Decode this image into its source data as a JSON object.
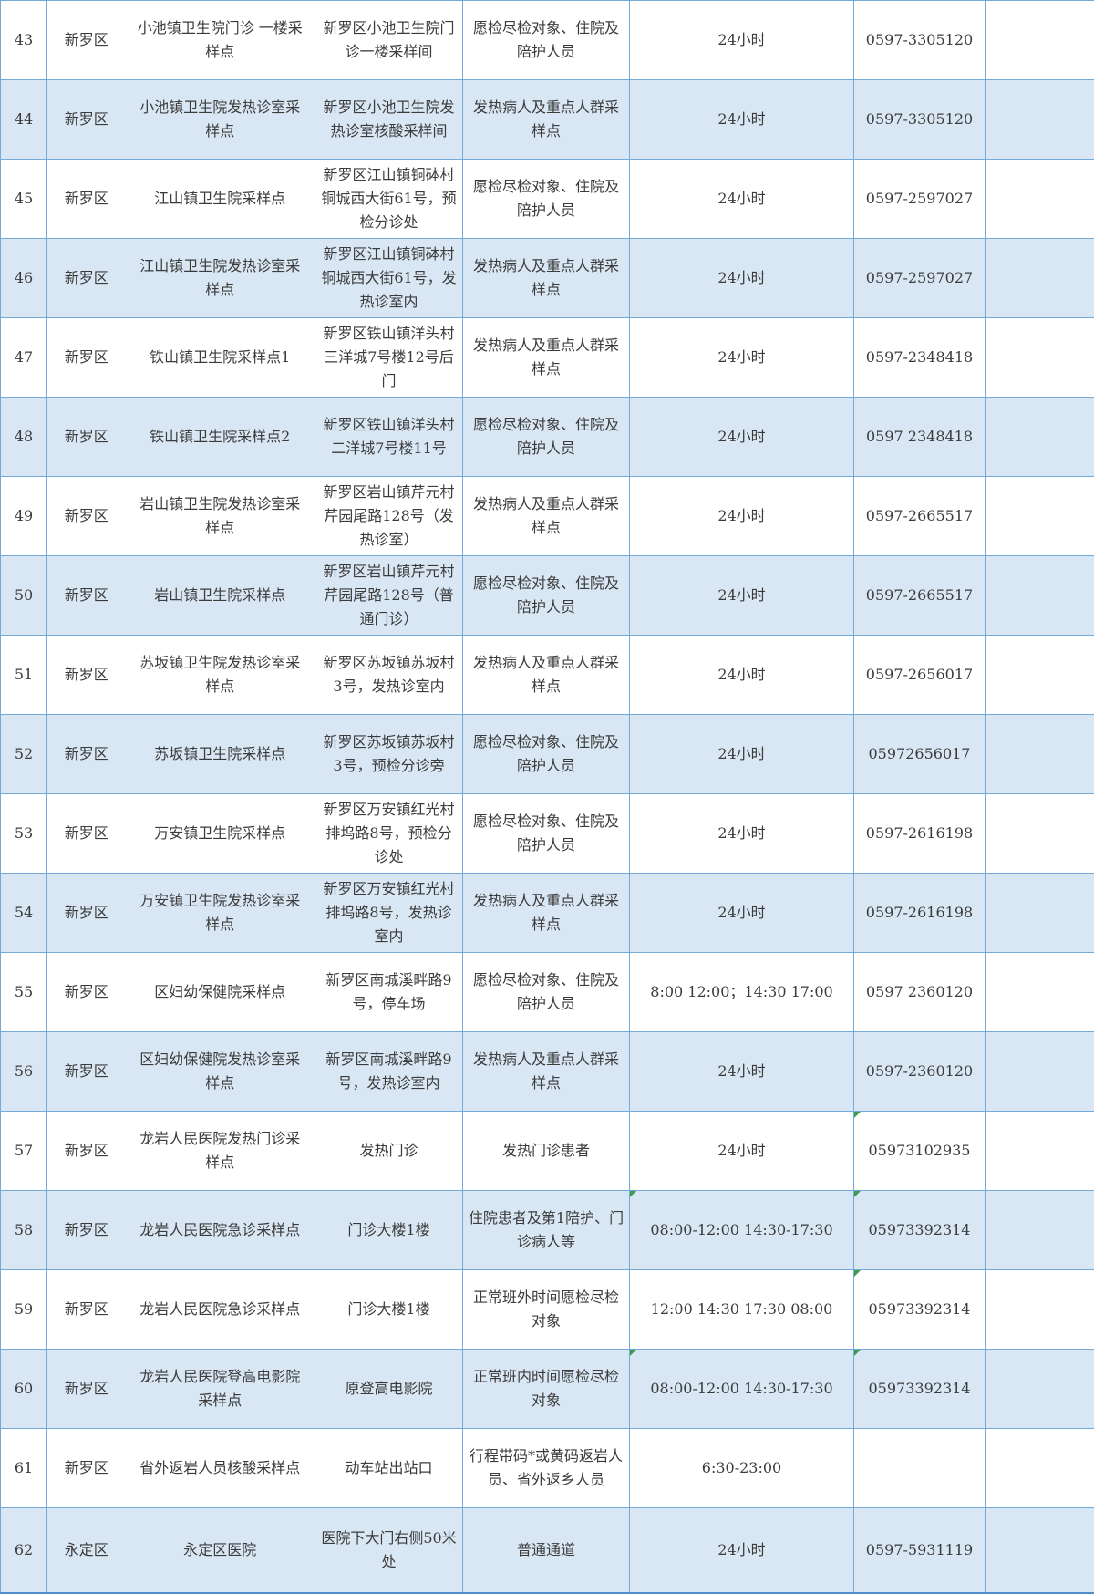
{
  "table": {
    "description": "nucleic-acid-sampling-sites-list",
    "colors": {
      "row_alt": "#d9e7f5",
      "border": "#74aad9",
      "border_bottom": "#4e8fc7",
      "text": "#3b3b3b",
      "flag_green": "#3e9b4f"
    },
    "rows": [
      {
        "no": "43",
        "district": "新罗区",
        "name": "小池镇卫生院门诊 一楼采样点",
        "address": "新罗区小池卫生院门诊一楼采样间",
        "population": "愿检尽检对象、住院及陪护人员",
        "hours": "24小时",
        "phone": "0597-3305120",
        "blank": "",
        "flags": []
      },
      {
        "no": "44",
        "district": "新罗区",
        "name": "小池镇卫生院发热诊室采样点",
        "address": "新罗区小池卫生院发热诊室核酸采样间",
        "population": "发热病人及重点人群采样点",
        "hours": "24小时",
        "phone": "0597-3305120",
        "blank": "",
        "flags": []
      },
      {
        "no": "45",
        "district": "新罗区",
        "name": "江山镇卫生院采样点",
        "address": "新罗区江山镇铜砵村铜城西大街61号，预检分诊处",
        "population": "愿检尽检对象、住院及陪护人员",
        "hours": "24小时",
        "phone": "0597-2597027",
        "blank": "",
        "flags": []
      },
      {
        "no": "46",
        "district": "新罗区",
        "name": "江山镇卫生院发热诊室采样点",
        "address": "新罗区江山镇铜砵村铜城西大街61号，发热诊室内",
        "population": "发热病人及重点人群采样点",
        "hours": "24小时",
        "phone": "0597-2597027",
        "blank": "",
        "flags": []
      },
      {
        "no": "47",
        "district": "新罗区",
        "name": "铁山镇卫生院采样点1",
        "address": "新罗区铁山镇洋头村三洋城7号楼12号后门",
        "population": "发热病人及重点人群采样点",
        "hours": "24小时",
        "phone": "0597-2348418",
        "blank": "",
        "flags": []
      },
      {
        "no": "48",
        "district": "新罗区",
        "name": "铁山镇卫生院采样点2",
        "address": "新罗区铁山镇洋头村二洋城7号楼11号",
        "population": "愿检尽检对象、住院及陪护人员",
        "hours": "24小时",
        "phone": "0597 2348418",
        "blank": "",
        "flags": []
      },
      {
        "no": "49",
        "district": "新罗区",
        "name": "岩山镇卫生院发热诊室采样点",
        "address": "新罗区岩山镇芹元村芹园尾路128号（发热诊室）",
        "population": "发热病人及重点人群采样点",
        "hours": "24小时",
        "phone": "0597-2665517",
        "blank": "",
        "flags": []
      },
      {
        "no": "50",
        "district": "新罗区",
        "name": "岩山镇卫生院采样点",
        "address": "新罗区岩山镇芹元村芹园尾路128号（普通门诊）",
        "population": "愿检尽检对象、住院及陪护人员",
        "hours": "24小时",
        "phone": "0597-2665517",
        "blank": "",
        "flags": []
      },
      {
        "no": "51",
        "district": "新罗区",
        "name": "苏坂镇卫生院发热诊室采样点",
        "address": "新罗区苏坂镇苏坂村3号，发热诊室内",
        "population": "发热病人及重点人群采样点",
        "hours": "24小时",
        "phone": "0597-2656017",
        "blank": "",
        "flags": []
      },
      {
        "no": "52",
        "district": "新罗区",
        "name": "苏坂镇卫生院采样点",
        "address": "新罗区苏坂镇苏坂村3号，预检分诊旁",
        "population": "愿检尽检对象、住院及陪护人员",
        "hours": "24小时",
        "phone": "05972656017",
        "blank": "",
        "flags": []
      },
      {
        "no": "53",
        "district": "新罗区",
        "name": "万安镇卫生院采样点",
        "address": "新罗区万安镇红光村排坞路8号，预检分诊处",
        "population": "愿检尽检对象、住院及陪护人员",
        "hours": "24小时",
        "phone": "0597-2616198",
        "blank": "",
        "flags": []
      },
      {
        "no": "54",
        "district": "新罗区",
        "name": "万安镇卫生院发热诊室采样点",
        "address": "新罗区万安镇红光村排坞路8号，发热诊室内",
        "population": "发热病人及重点人群采样点",
        "hours": "24小时",
        "phone": "0597-2616198",
        "blank": "",
        "flags": []
      },
      {
        "no": "55",
        "district": "新罗区",
        "name": "区妇幼保健院采样点",
        "address": "新罗区南城溪畔路9号，停车场",
        "population": "愿检尽检对象、住院及陪护人员",
        "hours": "8:00 12:00；14:30 17:00",
        "phone": "0597 2360120",
        "blank": "",
        "flags": []
      },
      {
        "no": "56",
        "district": "新罗区",
        "name": "区妇幼保健院发热诊室采样点",
        "address": "新罗区南城溪畔路9号，发热诊室内",
        "population": "发热病人及重点人群采样点",
        "hours": "24小时",
        "phone": "0597-2360120",
        "blank": "",
        "flags": []
      },
      {
        "no": "57",
        "district": "新罗区",
        "name": "龙岩人民医院发热门诊采样点",
        "address": "发热门诊",
        "population": "发热门诊患者",
        "hours": "24小时",
        "phone": "05973102935",
        "blank": "",
        "flags": [
          "phone"
        ]
      },
      {
        "no": "58",
        "district": "新罗区",
        "name": "龙岩人民医院急诊采样点",
        "address": "门诊大楼1楼",
        "population": "住院患者及第1陪护、门诊病人等",
        "hours": "08:00-12:00 14:30-17:30",
        "phone": "05973392314",
        "blank": "",
        "flags": [
          "hours",
          "phone"
        ]
      },
      {
        "no": "59",
        "district": "新罗区",
        "name": "龙岩人民医院急诊采样点",
        "address": "门诊大楼1楼",
        "population": "正常班外时间愿检尽检对象",
        "hours": "12:00 14:30 17:30 08:00",
        "phone": "05973392314",
        "blank": "",
        "flags": [
          "phone"
        ]
      },
      {
        "no": "60",
        "district": "新罗区",
        "name": "龙岩人民医院登高电影院采样点",
        "address": "原登高电影院",
        "population": "正常班内时间愿检尽检对象",
        "hours": "08:00-12:00 14:30-17:30",
        "phone": "05973392314",
        "blank": "",
        "flags": [
          "hours",
          "phone"
        ]
      },
      {
        "no": "61",
        "district": "新罗区",
        "name": "省外返岩人员核酸采样点",
        "address": "动车站出站口",
        "population": "行程带码*或黄码返岩人员、省外返乡人员",
        "hours": "6:30-23:00",
        "phone": "",
        "blank": "",
        "flags": []
      },
      {
        "no": "62",
        "district": "永定区",
        "name": "永定区医院",
        "address": "医院下大门右侧50米处",
        "population": "普通通道",
        "hours": "24小时",
        "phone": "0597-5931119",
        "blank": "",
        "flags": []
      }
    ]
  }
}
